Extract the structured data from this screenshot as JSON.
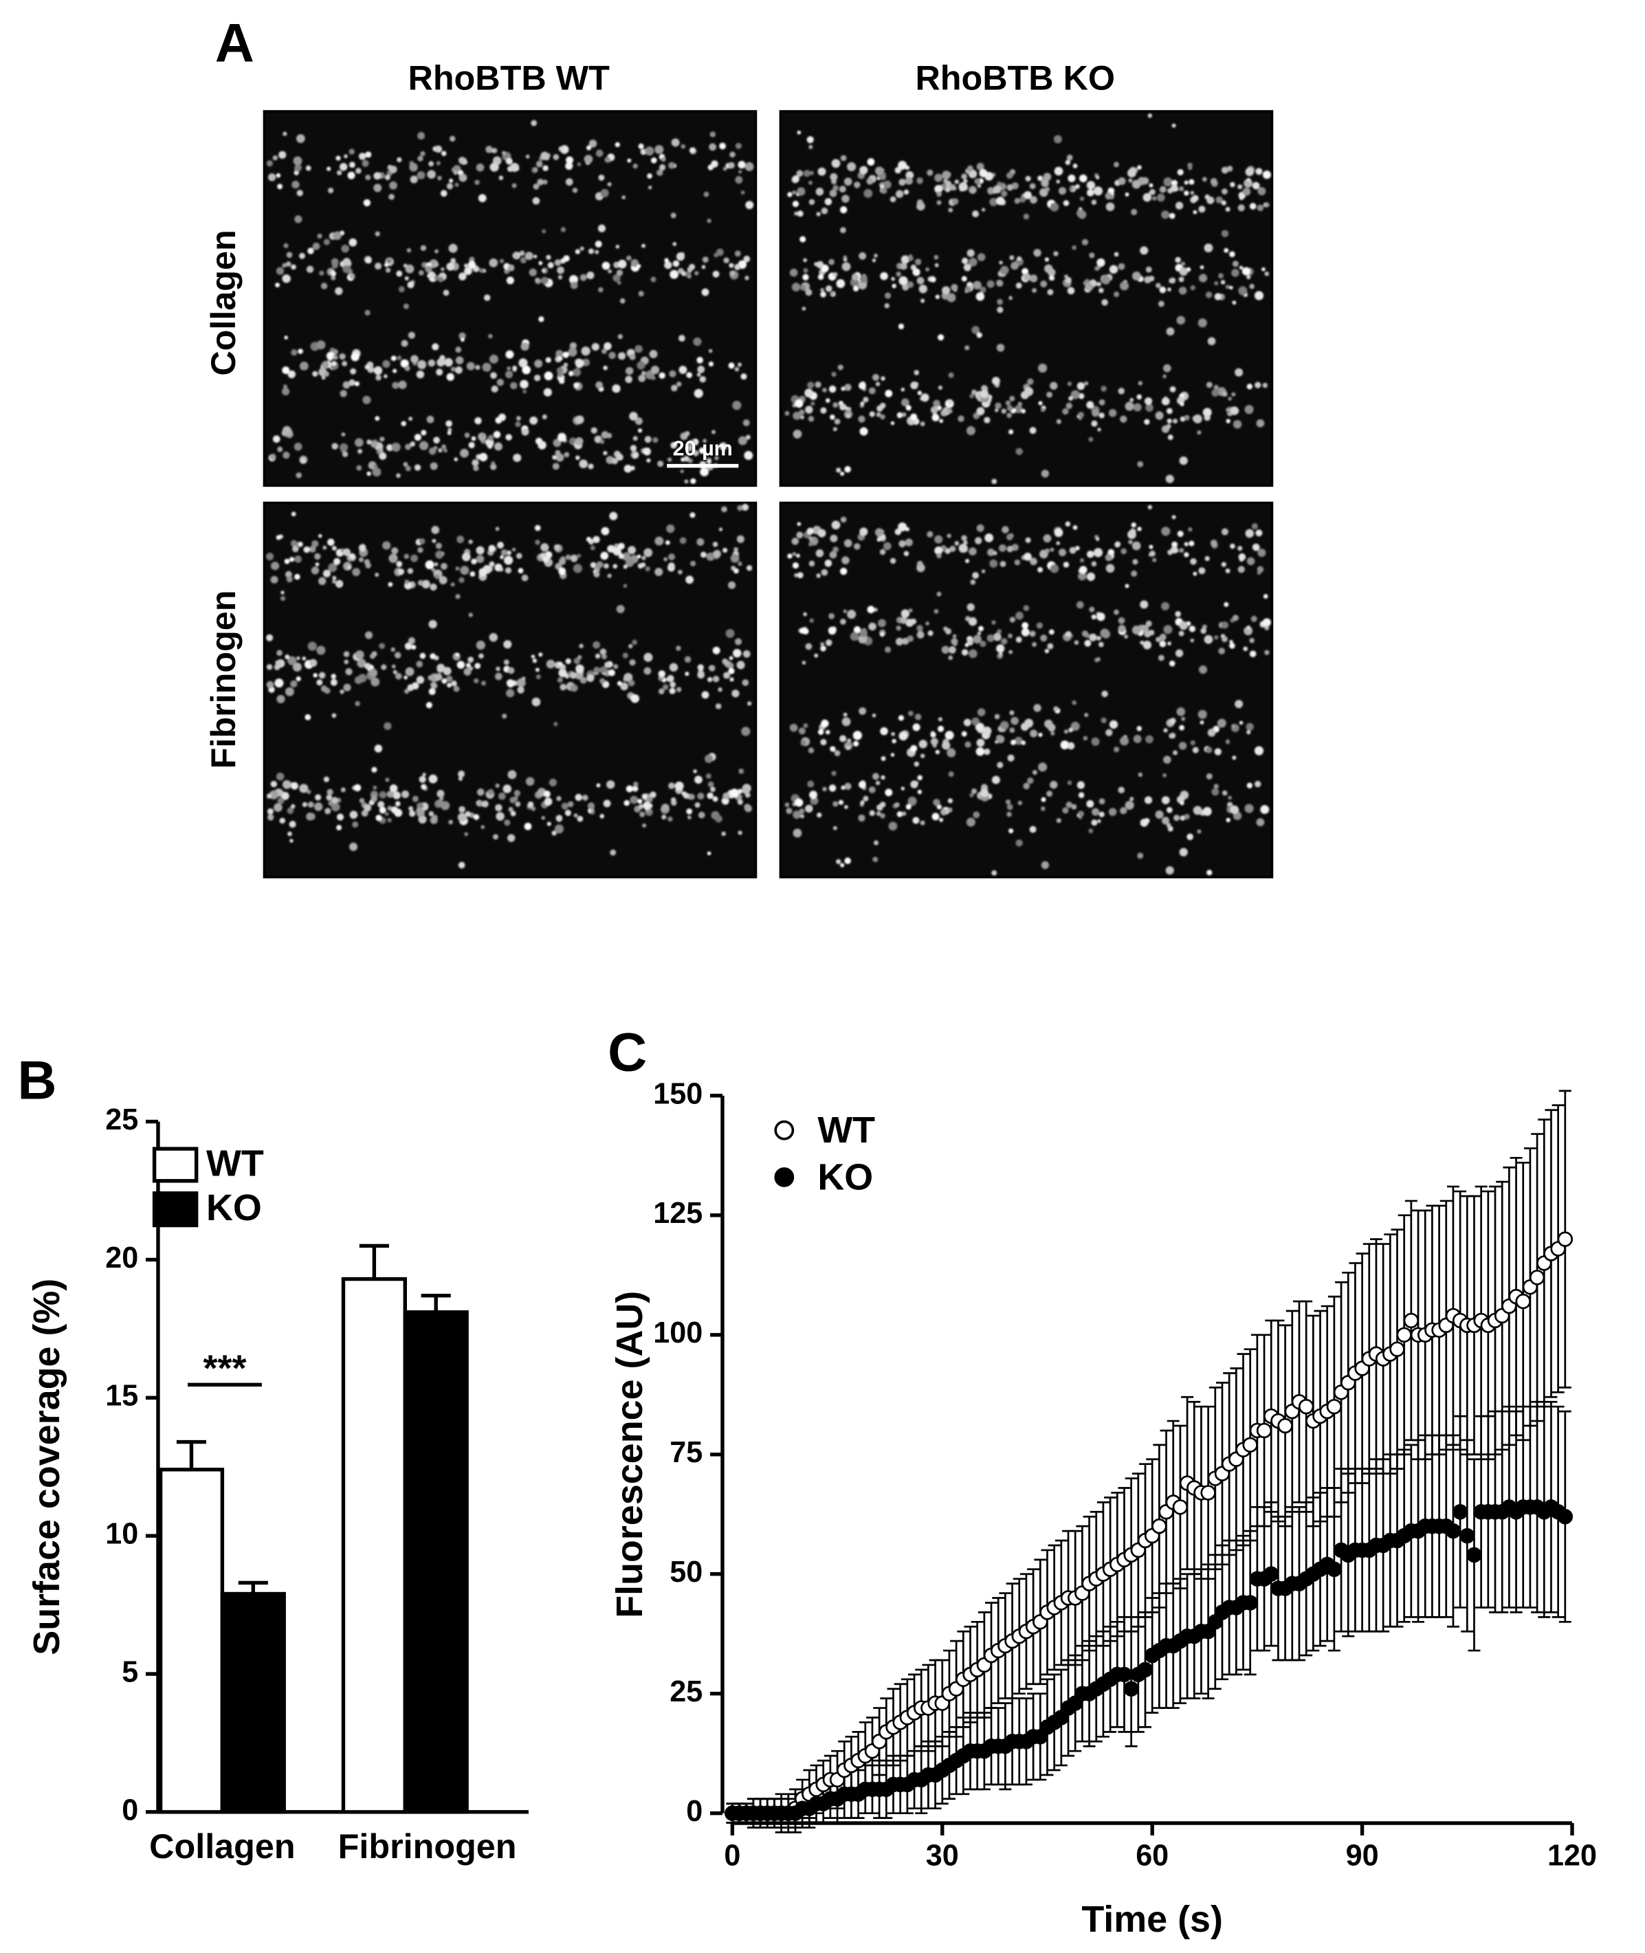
{
  "panel_a": {
    "label": "A",
    "columns": [
      "RhoBTB WT",
      "RhoBTB KO"
    ],
    "rows": [
      "Collagen",
      "Fibrinogen"
    ],
    "scale_bar": "20 µm"
  },
  "chart_data": [
    {
      "type": "bar",
      "panel": "B",
      "y_label": "Surface coverage (%)",
      "categories": [
        "Collagen",
        "Fibrinogen"
      ],
      "series": [
        {
          "name": "WT",
          "color": "#ffffff",
          "values": [
            12.4,
            19.3
          ],
          "errors": [
            1.0,
            1.2
          ]
        },
        {
          "name": "KO",
          "color": "#000000",
          "values": [
            7.9,
            18.1
          ],
          "errors": [
            0.4,
            0.6
          ]
        }
      ],
      "annotation": "***",
      "ylim": [
        0,
        25
      ],
      "yticks": [
        0,
        5,
        10,
        15,
        20,
        25
      ]
    },
    {
      "type": "scatter",
      "panel": "C",
      "x_label": "Time (s)",
      "y_label": "Fluorescence (AU)",
      "x": [
        0,
        1,
        2,
        3,
        4,
        5,
        6,
        7,
        8,
        9,
        10,
        11,
        12,
        13,
        14,
        15,
        16,
        17,
        18,
        19,
        20,
        21,
        22,
        23,
        24,
        25,
        26,
        27,
        28,
        29,
        30,
        31,
        32,
        33,
        34,
        35,
        36,
        37,
        38,
        39,
        40,
        41,
        42,
        43,
        44,
        45,
        46,
        47,
        48,
        49,
        50,
        51,
        52,
        53,
        54,
        55,
        56,
        57,
        58,
        59,
        60,
        61,
        62,
        63,
        64,
        65,
        66,
        67,
        68,
        69,
        70,
        71,
        72,
        73,
        74,
        75,
        76,
        77,
        78,
        79,
        80,
        81,
        82,
        83,
        84,
        85,
        86,
        87,
        88,
        89,
        90,
        91,
        92,
        93,
        94,
        95,
        96,
        97,
        98,
        99,
        100,
        101,
        102,
        103,
        104,
        105,
        106,
        107,
        108,
        109,
        110,
        111,
        112,
        113,
        114,
        115,
        116,
        117,
        118,
        119
      ],
      "series": [
        {
          "name": "WT",
          "color": "#ffffff",
          "values": [
            0,
            0,
            0,
            0,
            0,
            0,
            0,
            0,
            0,
            1,
            3,
            4,
            5,
            6,
            7,
            7,
            9,
            10,
            11,
            12,
            13,
            15,
            17,
            18,
            19,
            20,
            21,
            22,
            22,
            23,
            23,
            25,
            26,
            28,
            29,
            30,
            31,
            33,
            34,
            35,
            36,
            37,
            38,
            39,
            40,
            42,
            43,
            44,
            45,
            45,
            46,
            48,
            49,
            50,
            51,
            52,
            53,
            54,
            55,
            57,
            58,
            60,
            63,
            65,
            64,
            69,
            68,
            67,
            67,
            70,
            71,
            73,
            74,
            76,
            77,
            80,
            80,
            83,
            82,
            81,
            84,
            86,
            85,
            82,
            83,
            84,
            85,
            88,
            90,
            92,
            93,
            95,
            96,
            95,
            96,
            97,
            100,
            103,
            100,
            100,
            101,
            101,
            102,
            104,
            103,
            102,
            102,
            103,
            102,
            103,
            104,
            106,
            108,
            107,
            110,
            112,
            115,
            117,
            118,
            120
          ],
          "errors": [
            2,
            2,
            2,
            3,
            3,
            3,
            3,
            4,
            4,
            4,
            4,
            5,
            5,
            5,
            5,
            6,
            6,
            6,
            6,
            7,
            7,
            7,
            7,
            8,
            8,
            8,
            8,
            8,
            9,
            9,
            9,
            9,
            10,
            10,
            10,
            10,
            11,
            11,
            11,
            11,
            12,
            12,
            12,
            12,
            13,
            13,
            13,
            13,
            14,
            14,
            14,
            14,
            14,
            15,
            15,
            15,
            15,
            16,
            16,
            16,
            16,
            17,
            17,
            17,
            17,
            18,
            18,
            18,
            18,
            19,
            19,
            19,
            19,
            20,
            20,
            20,
            20,
            20,
            21,
            21,
            21,
            21,
            22,
            22,
            22,
            22,
            23,
            23,
            23,
            23,
            24,
            24,
            24,
            24,
            25,
            25,
            25,
            25,
            26,
            26,
            26,
            26,
            26,
            27,
            27,
            27,
            27,
            28,
            28,
            28,
            28,
            29,
            29,
            29,
            29,
            30,
            30,
            30,
            30,
            31
          ]
        },
        {
          "name": "KO",
          "color": "#000000",
          "values": [
            0,
            0,
            0,
            0,
            0,
            0,
            0,
            0,
            0,
            0,
            1,
            1,
            2,
            2,
            3,
            3,
            4,
            4,
            4,
            5,
            5,
            5,
            5,
            6,
            6,
            6,
            7,
            7,
            8,
            8,
            9,
            10,
            11,
            12,
            13,
            13,
            13,
            14,
            14,
            14,
            15,
            15,
            15,
            16,
            16,
            18,
            19,
            20,
            22,
            23,
            25,
            25,
            26,
            27,
            28,
            29,
            29,
            26,
            29,
            30,
            33,
            34,
            35,
            35,
            36,
            37,
            37,
            38,
            38,
            40,
            42,
            43,
            43,
            44,
            44,
            49,
            49,
            50,
            47,
            47,
            48,
            48,
            49,
            50,
            51,
            52,
            51,
            55,
            54,
            55,
            55,
            55,
            56,
            56,
            57,
            57,
            58,
            59,
            59,
            60,
            60,
            60,
            60,
            59,
            63,
            58,
            54,
            63,
            63,
            63,
            63,
            64,
            63,
            64,
            64,
            64,
            63,
            64,
            63,
            62
          ],
          "errors": [
            2,
            2,
            2,
            3,
            3,
            3,
            3,
            3,
            3,
            4,
            4,
            4,
            4,
            4,
            4,
            5,
            5,
            5,
            5,
            5,
            5,
            6,
            6,
            6,
            6,
            6,
            6,
            7,
            7,
            7,
            7,
            7,
            7,
            8,
            8,
            8,
            8,
            8,
            8,
            9,
            9,
            9,
            9,
            9,
            9,
            10,
            10,
            10,
            10,
            10,
            10,
            11,
            11,
            11,
            11,
            11,
            12,
            12,
            12,
            12,
            12,
            12,
            13,
            13,
            13,
            13,
            13,
            13,
            14,
            14,
            14,
            14,
            14,
            14,
            15,
            15,
            15,
            15,
            15,
            15,
            16,
            16,
            16,
            16,
            16,
            16,
            17,
            17,
            17,
            17,
            17,
            17,
            18,
            18,
            18,
            18,
            18,
            18,
            19,
            19,
            19,
            19,
            19,
            20,
            20,
            20,
            20,
            20,
            20,
            21,
            21,
            21,
            21,
            21,
            21,
            22,
            22,
            22,
            22,
            22
          ]
        }
      ],
      "xlim": [
        0,
        120
      ],
      "xticks": [
        0,
        30,
        60,
        90,
        120
      ],
      "ylim": [
        0,
        150
      ],
      "yticks": [
        0,
        25,
        50,
        75,
        100,
        125,
        150
      ]
    }
  ]
}
